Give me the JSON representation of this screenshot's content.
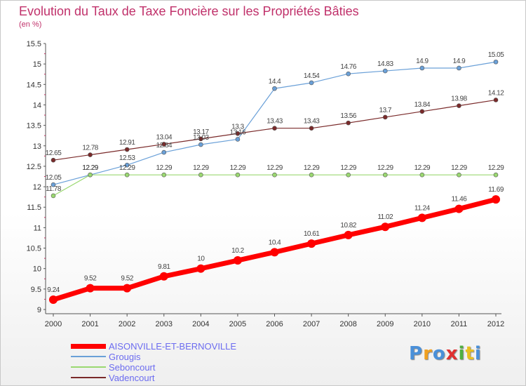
{
  "title": "Evolution du Taux de Taxe Foncière sur les Propriétés Bâties",
  "unit": "(en %)",
  "logo_text": "Proxiti",
  "logo_colors": [
    "#4a90d9",
    "#f0a020",
    "#4a90d9",
    "#e03030",
    "#50b040",
    "#e8c020",
    "#4a90d9"
  ],
  "chart_data": {
    "type": "line",
    "x": [
      "2000",
      "2001",
      "2002",
      "2003",
      "2004",
      "2005",
      "2006",
      "2007",
      "2008",
      "2009",
      "2010",
      "2011",
      "2012"
    ],
    "ylim": [
      9,
      15.5
    ],
    "yticks": [
      "9",
      "9.5",
      "10",
      "10.5",
      "11",
      "11.5",
      "12",
      "12.5",
      "13",
      "13.5",
      "14",
      "14.5",
      "15",
      "15.5"
    ],
    "grid": false,
    "legend_position": "bottom-left",
    "series": [
      {
        "name": "AISONVILLE-ET-BERNOVILLE",
        "color": "#ff0000",
        "values": [
          9.24,
          9.52,
          9.52,
          9.81,
          10,
          10.2,
          10.4,
          10.61,
          10.82,
          11.02,
          11.24,
          11.46,
          11.69
        ],
        "labels": [
          "9.24",
          "9.52",
          "9.52",
          "9.81",
          "10",
          "10.2",
          "10.4",
          "10.61",
          "10.82",
          "11.02",
          "11.24",
          "11.46",
          "11.69"
        ]
      },
      {
        "name": "Grougis",
        "color": "#6aa0d8",
        "values": [
          12.05,
          12.29,
          12.53,
          12.84,
          13.03,
          13.16,
          14.4,
          14.54,
          14.76,
          14.83,
          14.9,
          14.9,
          15.05
        ],
        "labels": [
          "12.05",
          "12.29",
          "12.53",
          "12.84",
          "13.03",
          "13.16",
          "14.4",
          "14.54",
          "14.76",
          "14.83",
          "14.9",
          "14.9",
          "15.05"
        ]
      },
      {
        "name": "Seboncourt",
        "color": "#9ad870",
        "values": [
          11.78,
          12.29,
          12.29,
          12.29,
          12.29,
          12.29,
          12.29,
          12.29,
          12.29,
          12.29,
          12.29,
          12.29,
          12.29
        ],
        "labels": [
          "11.78",
          "12.29",
          "12.29",
          "12.29",
          "12.29",
          "12.29",
          "12.29",
          "12.29",
          "12.29",
          "12.29",
          "12.29",
          "12.29",
          "12.29"
        ]
      },
      {
        "name": "Vadencourt",
        "color": "#7a2a2a",
        "values": [
          12.65,
          12.78,
          12.91,
          13.04,
          13.17,
          13.3,
          13.43,
          13.43,
          13.56,
          13.7,
          13.84,
          13.98,
          14.12
        ],
        "labels": [
          "12.65",
          "12.78",
          "12.91",
          "13.04",
          "13.17",
          "13.3",
          "13.43",
          "13.43",
          "13.56",
          "13.7",
          "13.84",
          "13.98",
          "14.12"
        ]
      }
    ]
  }
}
